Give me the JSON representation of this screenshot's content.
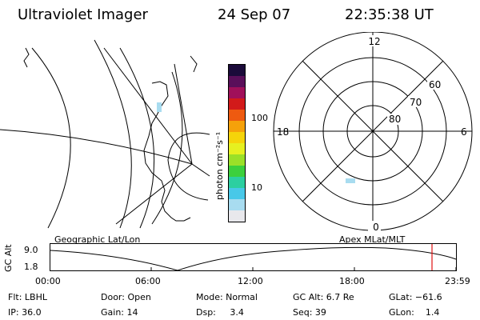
{
  "header": {
    "title": "Ultraviolet Imager",
    "date": "24 Sep 07",
    "time": "22:35:38 UT"
  },
  "colorbar": {
    "unit_label": "photon cm⁻²s⁻¹",
    "tick_100": "100",
    "tick_10": "10",
    "colors": [
      "#1b0b3a",
      "#5a0f5a",
      "#a0105a",
      "#d21a1a",
      "#ee5a10",
      "#f5a10a",
      "#f5d40a",
      "#e6f020",
      "#9be028",
      "#3cd03c",
      "#2ccfa0",
      "#48c8e8",
      "#a8dcf0",
      "#e8e8ec"
    ]
  },
  "left_plot": {
    "label": "Geographic Lat/Lon"
  },
  "polar_plot": {
    "label": "Apex MLat/MLT",
    "mlt_top": "12",
    "mlt_bottom": "0",
    "mlt_left": "18",
    "mlt_right": "6",
    "lat_60": "60",
    "lat_70": "70",
    "lat_80": "80"
  },
  "timeline": {
    "y_label": "GC Alt",
    "y_top": "9.0",
    "y_bottom": "1.8",
    "ticks": [
      "00:00",
      "06:00",
      "12:00",
      "18:00",
      "23:59"
    ],
    "cursor_color": "#e01010"
  },
  "info": {
    "flt": "Flt: LBHL",
    "ip": "IP: 36.0",
    "door": "Door: Open",
    "gain": "Gain: 14",
    "mode": "Mode: Normal",
    "dsp": "Dsp:     3.4",
    "gc_alt": "GC Alt: 6.7 Re",
    "seq": "Seq: 39",
    "glat": "GLat: −61.6",
    "glon": "GLon:    1.4"
  }
}
